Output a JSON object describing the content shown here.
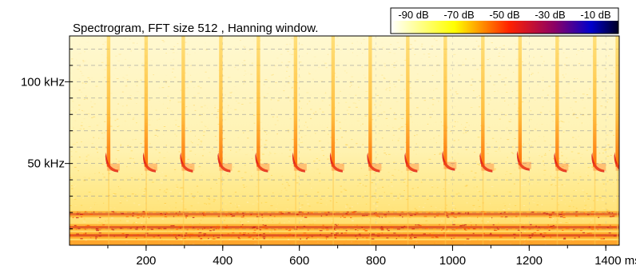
{
  "chart_data": {
    "type": "heatmap",
    "title": "Spectrogram, FFT size 512 , Hanning window.",
    "x_axis": {
      "unit_label": "ms",
      "ticks": [
        200,
        400,
        600,
        800,
        1000,
        1200,
        1400
      ],
      "tick_labels": [
        "200",
        "400",
        "600",
        "800",
        "1000",
        "1200",
        "1400 ms"
      ],
      "range": [
        0,
        1435
      ]
    },
    "y_axis": {
      "ticks": [
        50,
        100
      ],
      "tick_labels": [
        "50 kHz",
        "100 kHz"
      ],
      "range": [
        0,
        128
      ]
    },
    "colorbar": {
      "labels": [
        "-90 dB",
        "-70 dB",
        "-50 dB",
        "-30 dB",
        "-10 dB"
      ],
      "values": [
        -90,
        -70,
        -50,
        -30,
        -10
      ],
      "colors": [
        "#ffffff",
        "#ffff00",
        "#ff2200",
        "#8b0066",
        "#0000cc",
        "#000022"
      ]
    },
    "grid": true,
    "pulses": [
      {
        "time_ms": 102,
        "end_khz": 48
      },
      {
        "time_ms": 200,
        "end_khz": 48
      },
      {
        "time_ms": 297,
        "end_khz": 48
      },
      {
        "time_ms": 395,
        "end_khz": 48
      },
      {
        "time_ms": 493,
        "end_khz": 48
      },
      {
        "time_ms": 590,
        "end_khz": 48
      },
      {
        "time_ms": 688,
        "end_khz": 48
      },
      {
        "time_ms": 785,
        "end_khz": 48
      },
      {
        "time_ms": 883,
        "end_khz": 48
      },
      {
        "time_ms": 981,
        "end_khz": 49
      },
      {
        "time_ms": 1079,
        "end_khz": 48
      },
      {
        "time_ms": 1176,
        "end_khz": 49
      },
      {
        "time_ms": 1273,
        "end_khz": 48
      },
      {
        "time_ms": 1371,
        "end_khz": 48
      },
      {
        "time_ms": 1430,
        "end_khz": 48
      }
    ],
    "noise_bands_khz": [
      {
        "center": 6,
        "level_db": -55
      },
      {
        "center": 11,
        "level_db": -60
      },
      {
        "center": 19,
        "level_db": -68
      }
    ]
  }
}
